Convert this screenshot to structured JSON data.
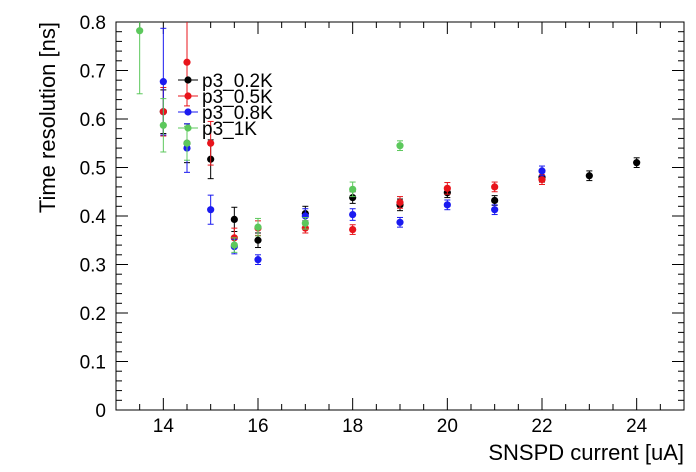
{
  "chart_data": {
    "type": "scatter",
    "title": "",
    "xlabel": "SNSPD current [uA]",
    "ylabel": "Time resolution [ns]",
    "xlim": [
      13,
      25
    ],
    "ylim": [
      0,
      0.8
    ],
    "x_ticks": [
      14,
      16,
      18,
      20,
      22,
      24
    ],
    "y_ticks": [
      0,
      0.1,
      0.2,
      0.3,
      0.4,
      0.5,
      0.6,
      0.7,
      0.8
    ],
    "x_tick_labels": [
      "14",
      "16",
      "18",
      "20",
      "22",
      "24"
    ],
    "y_tick_labels": [
      "0",
      "0.1",
      "0.2",
      "0.3",
      "0.4",
      "0.5",
      "0.6",
      "0.7",
      "0.8"
    ],
    "grid": false,
    "legend_position": "upper-left",
    "series": [
      {
        "name": "p3_0.2K",
        "color": "#000000",
        "points": [
          {
            "x": 14.0,
            "y": 0.615,
            "err": 0.045
          },
          {
            "x": 14.5,
            "y": 0.55,
            "err": 0.04
          },
          {
            "x": 15.0,
            "y": 0.517,
            "err": 0.04
          },
          {
            "x": 15.5,
            "y": 0.393,
            "err": 0.025
          },
          {
            "x": 16.0,
            "y": 0.35,
            "err": 0.015
          },
          {
            "x": 17.0,
            "y": 0.405,
            "err": 0.015
          },
          {
            "x": 18.0,
            "y": 0.438,
            "err": 0.012
          },
          {
            "x": 19.0,
            "y": 0.423,
            "err": 0.012
          },
          {
            "x": 20.0,
            "y": 0.448,
            "err": 0.01
          },
          {
            "x": 21.0,
            "y": 0.432,
            "err": 0.01
          },
          {
            "x": 22.0,
            "y": 0.48,
            "err": 0.01
          },
          {
            "x": 23.0,
            "y": 0.483,
            "err": 0.01
          },
          {
            "x": 24.0,
            "y": 0.51,
            "err": 0.01
          }
        ]
      },
      {
        "name": "p3_0.5K",
        "color": "#e8141b",
        "points": [
          {
            "x": 14.0,
            "y": 0.615,
            "err": 0.05
          },
          {
            "x": 14.5,
            "y": 0.717,
            "err": 0.09
          },
          {
            "x": 15.0,
            "y": 0.55,
            "err": 0.045
          },
          {
            "x": 15.5,
            "y": 0.355,
            "err": 0.02
          },
          {
            "x": 16.0,
            "y": 0.375,
            "err": 0.015
          },
          {
            "x": 17.0,
            "y": 0.375,
            "err": 0.01
          },
          {
            "x": 18.0,
            "y": 0.372,
            "err": 0.01
          },
          {
            "x": 19.0,
            "y": 0.428,
            "err": 0.012
          },
          {
            "x": 20.0,
            "y": 0.457,
            "err": 0.012
          },
          {
            "x": 21.0,
            "y": 0.46,
            "err": 0.01
          },
          {
            "x": 22.0,
            "y": 0.475,
            "err": 0.01
          }
        ]
      },
      {
        "name": "p3_0.8K",
        "color": "#1a1af0",
        "points": [
          {
            "x": 14.0,
            "y": 0.677,
            "err": 0.11
          },
          {
            "x": 14.5,
            "y": 0.54,
            "err": 0.05
          },
          {
            "x": 15.0,
            "y": 0.413,
            "err": 0.03
          },
          {
            "x": 15.5,
            "y": 0.337,
            "err": 0.015
          },
          {
            "x": 16.0,
            "y": 0.31,
            "err": 0.01
          },
          {
            "x": 17.0,
            "y": 0.4,
            "err": 0.015
          },
          {
            "x": 18.0,
            "y": 0.403,
            "err": 0.012
          },
          {
            "x": 19.0,
            "y": 0.387,
            "err": 0.01
          },
          {
            "x": 20.0,
            "y": 0.423,
            "err": 0.01
          },
          {
            "x": 21.0,
            "y": 0.413,
            "err": 0.01
          },
          {
            "x": 22.0,
            "y": 0.493,
            "err": 0.01
          }
        ]
      },
      {
        "name": "p3_1K",
        "color": "#5cc85c",
        "points": [
          {
            "x": 13.5,
            "y": 0.782,
            "err": 0.13
          },
          {
            "x": 14.0,
            "y": 0.587,
            "err": 0.055
          },
          {
            "x": 14.5,
            "y": 0.55,
            "err": 0.035
          },
          {
            "x": 15.5,
            "y": 0.34,
            "err": 0.015
          },
          {
            "x": 16.0,
            "y": 0.377,
            "err": 0.018
          },
          {
            "x": 17.0,
            "y": 0.385,
            "err": 0.012
          },
          {
            "x": 18.0,
            "y": 0.455,
            "err": 0.015
          },
          {
            "x": 19.0,
            "y": 0.545,
            "err": 0.01
          }
        ]
      }
    ]
  }
}
